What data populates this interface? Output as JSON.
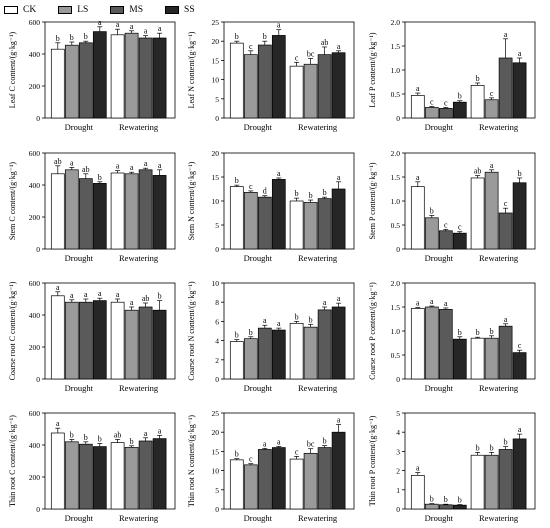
{
  "colors": {
    "CK": "#ffffff",
    "LS": "#9a9a9a",
    "MS": "#5a5a5a",
    "SS": "#262626"
  },
  "legend": [
    "CK",
    "LS",
    "MS",
    "SS"
  ],
  "chart_data": [
    {
      "type": "bar",
      "ylabel": "Leaf C content/(g·kg⁻¹)",
      "ylim": [
        0,
        600
      ],
      "yticks": [
        0,
        200,
        400,
        600
      ],
      "ytick_labels": [
        "0",
        "200",
        "400",
        "600"
      ],
      "categories": [
        "Drought",
        "Rewatering"
      ],
      "series": [
        {
          "name": "CK",
          "values": [
            430,
            520
          ],
          "errors": [
            40,
            35
          ],
          "letters": [
            "b",
            "a"
          ]
        },
        {
          "name": "LS",
          "values": [
            455,
            530
          ],
          "errors": [
            20,
            15
          ],
          "letters": [
            "b",
            "a"
          ]
        },
        {
          "name": "MS",
          "values": [
            470,
            500
          ],
          "errors": [
            10,
            15
          ],
          "letters": [
            "b",
            "a"
          ]
        },
        {
          "name": "SS",
          "values": [
            540,
            500
          ],
          "errors": [
            30,
            30
          ],
          "letters": [
            "a",
            "a"
          ]
        }
      ]
    },
    {
      "type": "bar",
      "ylabel": "Leaf N content/(g·kg⁻¹)",
      "ylim": [
        0,
        25
      ],
      "yticks": [
        0,
        5,
        10,
        15,
        20,
        25
      ],
      "ytick_labels": [
        "0",
        "5",
        "10",
        "15",
        "20",
        "25"
      ],
      "categories": [
        "Drought",
        "Rewatering"
      ],
      "series": [
        {
          "name": "CK",
          "values": [
            19.5,
            13.5
          ],
          "errors": [
            0.5,
            1.0
          ],
          "letters": [
            "b",
            "c"
          ]
        },
        {
          "name": "LS",
          "values": [
            16.5,
            14.0
          ],
          "errors": [
            1.0,
            1.5
          ],
          "letters": [
            "c",
            "bc"
          ]
        },
        {
          "name": "MS",
          "values": [
            19.0,
            16.5
          ],
          "errors": [
            1.0,
            2.0
          ],
          "letters": [
            "b",
            "ab"
          ]
        },
        {
          "name": "SS",
          "values": [
            21.5,
            17.0
          ],
          "errors": [
            1.5,
            0.5
          ],
          "letters": [
            "a",
            "a"
          ]
        }
      ]
    },
    {
      "type": "bar",
      "ylabel": "Leaf P content/(g·kg⁻¹)",
      "ylim": [
        0,
        2.0
      ],
      "yticks": [
        0,
        0.5,
        1.0,
        1.5,
        2.0
      ],
      "ytick_labels": [
        "0",
        "0.5",
        "1.0",
        "1.5",
        "2.0"
      ],
      "categories": [
        "Drought",
        "Rewatering"
      ],
      "series": [
        {
          "name": "CK",
          "values": [
            0.47,
            0.68
          ],
          "errors": [
            0.05,
            0.05
          ],
          "letters": [
            "a",
            "b"
          ]
        },
        {
          "name": "LS",
          "values": [
            0.22,
            0.38
          ],
          "errors": [
            0.02,
            0.04
          ],
          "letters": [
            "c",
            "c"
          ]
        },
        {
          "name": "MS",
          "values": [
            0.2,
            1.25
          ],
          "errors": [
            0.02,
            0.4
          ],
          "letters": [
            "c",
            "a"
          ]
        },
        {
          "name": "SS",
          "values": [
            0.33,
            1.15
          ],
          "errors": [
            0.03,
            0.1
          ],
          "letters": [
            "b",
            "a"
          ]
        }
      ]
    },
    {
      "type": "bar",
      "ylabel": "Stem C content/(g·kg⁻¹)",
      "ylim": [
        0,
        600
      ],
      "yticks": [
        0,
        200,
        400,
        600
      ],
      "ytick_labels": [
        "0",
        "200",
        "400",
        "600"
      ],
      "categories": [
        "Drought",
        "Rewatering"
      ],
      "series": [
        {
          "name": "CK",
          "values": [
            470,
            475
          ],
          "errors": [
            50,
            15
          ],
          "letters": [
            "ab",
            "a"
          ]
        },
        {
          "name": "LS",
          "values": [
            495,
            470
          ],
          "errors": [
            15,
            10
          ],
          "letters": [
            "a",
            "a"
          ]
        },
        {
          "name": "MS",
          "values": [
            440,
            495
          ],
          "errors": [
            30,
            10
          ],
          "letters": [
            "ab",
            "a"
          ]
        },
        {
          "name": "SS",
          "values": [
            410,
            460
          ],
          "errors": [
            10,
            35
          ],
          "letters": [
            "b",
            "a"
          ]
        }
      ]
    },
    {
      "type": "bar",
      "ylabel": "Stem N content/(g·kg⁻¹)",
      "ylim": [
        0,
        20
      ],
      "yticks": [
        0,
        5,
        10,
        15,
        20
      ],
      "ytick_labels": [
        "0",
        "5",
        "10",
        "15",
        "20"
      ],
      "categories": [
        "Drought",
        "Rewatering"
      ],
      "series": [
        {
          "name": "CK",
          "values": [
            13.0,
            10.0
          ],
          "errors": [
            0.3,
            0.6
          ],
          "letters": [
            "b",
            "b"
          ]
        },
        {
          "name": "LS",
          "values": [
            11.8,
            9.7
          ],
          "errors": [
            0.3,
            0.5
          ],
          "letters": [
            "c",
            "b"
          ]
        },
        {
          "name": "MS",
          "values": [
            10.8,
            10.5
          ],
          "errors": [
            0.3,
            0.3
          ],
          "letters": [
            "d",
            "b"
          ]
        },
        {
          "name": "SS",
          "values": [
            14.5,
            12.5
          ],
          "errors": [
            0.3,
            1.5
          ],
          "letters": [
            "a",
            "a"
          ]
        }
      ]
    },
    {
      "type": "bar",
      "ylabel": "Stem P content/(g·kg⁻¹)",
      "ylim": [
        0,
        2.0
      ],
      "yticks": [
        0,
        0.5,
        1.0,
        1.5,
        2.0
      ],
      "ytick_labels": [
        "0",
        "0.5",
        "1.0",
        "1.5",
        "2.0"
      ],
      "categories": [
        "Drought",
        "Rewatering"
      ],
      "series": [
        {
          "name": "CK",
          "values": [
            1.3,
            1.48
          ],
          "errors": [
            0.1,
            0.05
          ],
          "letters": [
            "a",
            "ab"
          ]
        },
        {
          "name": "LS",
          "values": [
            0.65,
            1.6
          ],
          "errors": [
            0.05,
            0.05
          ],
          "letters": [
            "b",
            "a"
          ]
        },
        {
          "name": "MS",
          "values": [
            0.38,
            0.75
          ],
          "errors": [
            0.03,
            0.1
          ],
          "letters": [
            "c",
            "c"
          ]
        },
        {
          "name": "SS",
          "values": [
            0.33,
            1.38
          ],
          "errors": [
            0.03,
            0.1
          ],
          "letters": [
            "c",
            "b"
          ]
        }
      ]
    },
    {
      "type": "bar",
      "ylabel": "Coarse root C content/(g·kg⁻¹)",
      "ylim": [
        0,
        600
      ],
      "yticks": [
        0,
        200,
        400,
        600
      ],
      "ytick_labels": [
        "0",
        "200",
        "400",
        "600"
      ],
      "categories": [
        "Drought",
        "Rewatering"
      ],
      "series": [
        {
          "name": "CK",
          "values": [
            520,
            480
          ],
          "errors": [
            25,
            20
          ],
          "letters": [
            "a",
            "a"
          ]
        },
        {
          "name": "LS",
          "values": [
            480,
            430
          ],
          "errors": [
            15,
            20
          ],
          "letters": [
            "a",
            "a"
          ]
        },
        {
          "name": "MS",
          "values": [
            480,
            450
          ],
          "errors": [
            20,
            25
          ],
          "letters": [
            "a",
            "ab"
          ]
        },
        {
          "name": "SS",
          "values": [
            490,
            430
          ],
          "errors": [
            15,
            60
          ],
          "letters": [
            "a",
            "b"
          ]
        }
      ]
    },
    {
      "type": "bar",
      "ylabel": "Coarse root N content/(g·kg⁻¹)",
      "ylim": [
        0,
        10
      ],
      "yticks": [
        0,
        2,
        4,
        6,
        8,
        10
      ],
      "ytick_labels": [
        "0",
        "2",
        "4",
        "6",
        "8",
        "10"
      ],
      "categories": [
        "Drought",
        "Rewatering"
      ],
      "series": [
        {
          "name": "CK",
          "values": [
            3.9,
            5.8
          ],
          "errors": [
            0.2,
            0.2
          ],
          "letters": [
            "b",
            "b"
          ]
        },
        {
          "name": "LS",
          "values": [
            4.2,
            5.4
          ],
          "errors": [
            0.2,
            0.3
          ],
          "letters": [
            "b",
            "b"
          ]
        },
        {
          "name": "MS",
          "values": [
            5.3,
            7.2
          ],
          "errors": [
            0.3,
            0.3
          ],
          "letters": [
            "a",
            "a"
          ]
        },
        {
          "name": "SS",
          "values": [
            5.1,
            7.5
          ],
          "errors": [
            0.2,
            0.4
          ],
          "letters": [
            "a",
            "a"
          ]
        }
      ]
    },
    {
      "type": "bar",
      "ylabel": "Coarse root P content/(g·kg⁻¹)",
      "ylim": [
        0,
        2.0
      ],
      "yticks": [
        0,
        0.5,
        1.0,
        1.5,
        2.0
      ],
      "ytick_labels": [
        "0",
        "0.5",
        "1.0",
        "1.5",
        "2.0"
      ],
      "categories": [
        "Drought",
        "Rewatering"
      ],
      "series": [
        {
          "name": "CK",
          "values": [
            1.47,
            0.85
          ],
          "errors": [
            0.02,
            0.02
          ],
          "letters": [
            "a",
            "b"
          ]
        },
        {
          "name": "LS",
          "values": [
            1.5,
            0.85
          ],
          "errors": [
            0.02,
            0.05
          ],
          "letters": [
            "a",
            "b"
          ]
        },
        {
          "name": "MS",
          "values": [
            1.45,
            1.1
          ],
          "errors": [
            0.03,
            0.05
          ],
          "letters": [
            "a",
            "a"
          ]
        },
        {
          "name": "SS",
          "values": [
            0.83,
            0.55
          ],
          "errors": [
            0.05,
            0.05
          ],
          "letters": [
            "b",
            "c"
          ]
        }
      ]
    },
    {
      "type": "bar",
      "ylabel": "Thin root C content/(g·kg⁻¹)",
      "ylim": [
        0,
        600
      ],
      "yticks": [
        0,
        200,
        400,
        600
      ],
      "ytick_labels": [
        "0",
        "200",
        "400",
        "600"
      ],
      "categories": [
        "Drought",
        "Rewatering"
      ],
      "series": [
        {
          "name": "CK",
          "values": [
            475,
            415
          ],
          "errors": [
            30,
            20
          ],
          "letters": [
            "a",
            "ab"
          ]
        },
        {
          "name": "LS",
          "values": [
            420,
            385
          ],
          "errors": [
            15,
            10
          ],
          "letters": [
            "b",
            "b"
          ]
        },
        {
          "name": "MS",
          "values": [
            405,
            425
          ],
          "errors": [
            15,
            20
          ],
          "letters": [
            "b",
            "a"
          ]
        },
        {
          "name": "SS",
          "values": [
            390,
            440
          ],
          "errors": [
            20,
            20
          ],
          "letters": [
            "b",
            "a"
          ]
        }
      ]
    },
    {
      "type": "bar",
      "ylabel": "Thin root N content/(g·kg⁻¹)",
      "ylim": [
        0,
        25
      ],
      "yticks": [
        0,
        5,
        10,
        15,
        20,
        25
      ],
      "ytick_labels": [
        "0",
        "5",
        "10",
        "15",
        "20",
        "25"
      ],
      "categories": [
        "Drought",
        "Rewatering"
      ],
      "series": [
        {
          "name": "CK",
          "values": [
            12.8,
            13.0
          ],
          "errors": [
            0.3,
            0.7
          ],
          "letters": [
            "b",
            "c"
          ]
        },
        {
          "name": "LS",
          "values": [
            11.5,
            14.5
          ],
          "errors": [
            0.3,
            1.2
          ],
          "letters": [
            "c",
            "bc"
          ]
        },
        {
          "name": "MS",
          "values": [
            15.5,
            16.0
          ],
          "errors": [
            0.3,
            0.5
          ],
          "letters": [
            "a",
            "b"
          ]
        },
        {
          "name": "SS",
          "values": [
            16.0,
            20.0
          ],
          "errors": [
            0.3,
            2.0
          ],
          "letters": [
            "a",
            "a"
          ]
        }
      ]
    },
    {
      "type": "bar",
      "ylabel": "Thin root P content/(g·kg⁻¹)",
      "ylim": [
        0,
        5
      ],
      "yticks": [
        0,
        1,
        2,
        3,
        4,
        5
      ],
      "ytick_labels": [
        "0",
        "1",
        "2",
        "3",
        "4",
        "5"
      ],
      "categories": [
        "Drought",
        "Rewatering"
      ],
      "series": [
        {
          "name": "CK",
          "values": [
            1.75,
            2.8
          ],
          "errors": [
            0.15,
            0.15
          ],
          "letters": [
            "a",
            "b"
          ]
        },
        {
          "name": "LS",
          "values": [
            0.25,
            2.8
          ],
          "errors": [
            0.03,
            0.15
          ],
          "letters": [
            "b",
            "b"
          ]
        },
        {
          "name": "MS",
          "values": [
            0.22,
            3.1
          ],
          "errors": [
            0.03,
            0.15
          ],
          "letters": [
            "b",
            "b"
          ]
        },
        {
          "name": "SS",
          "values": [
            0.2,
            3.65
          ],
          "errors": [
            0.03,
            0.25
          ],
          "letters": [
            "b",
            "a"
          ]
        }
      ]
    }
  ]
}
